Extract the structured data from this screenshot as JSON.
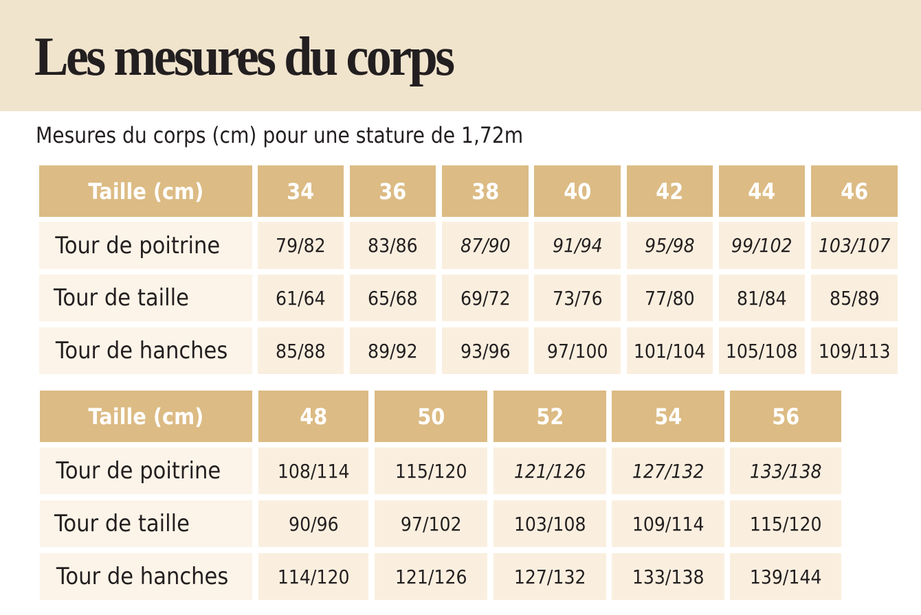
{
  "header": {
    "title": "Les mesures du corps",
    "subtitle": "Mesures du corps (cm) pour une stature de 1,72m"
  },
  "colors": {
    "banner": "#f0e4cd",
    "header_cell": "#dcbb84",
    "label_cell": "#fcf4e8",
    "value_cell": "#faefdf",
    "text": "#231f20"
  },
  "tables": [
    {
      "header_label": "Taille (cm)",
      "sizes": [
        "34",
        "36",
        "38",
        "40",
        "42",
        "44",
        "46"
      ],
      "rows": [
        {
          "label": "Tour de poitrine",
          "values": [
            "79/82",
            "83/86",
            "87/90",
            "91/94",
            "95/98",
            "99/102",
            "103/107"
          ]
        },
        {
          "label": "Tour de taille",
          "values": [
            "61/64",
            "65/68",
            "69/72",
            "73/76",
            "77/80",
            "81/84",
            "85/89"
          ]
        },
        {
          "label": "Tour de hanches",
          "values": [
            "85/88",
            "89/92",
            "93/96",
            "97/100",
            "101/104",
            "105/108",
            "109/113"
          ]
        }
      ]
    },
    {
      "header_label": "Taille (cm)",
      "sizes": [
        "48",
        "50",
        "52",
        "54",
        "56"
      ],
      "rows": [
        {
          "label": "Tour de poitrine",
          "values": [
            "108/114",
            "115/120",
            "121/126",
            "127/132",
            "133/138"
          ]
        },
        {
          "label": "Tour de taille",
          "values": [
            "90/96",
            "97/102",
            "103/108",
            "109/114",
            "115/120"
          ]
        },
        {
          "label": "Tour de hanches",
          "values": [
            "114/120",
            "121/126",
            "127/132",
            "133/138",
            "139/144"
          ]
        }
      ]
    }
  ]
}
